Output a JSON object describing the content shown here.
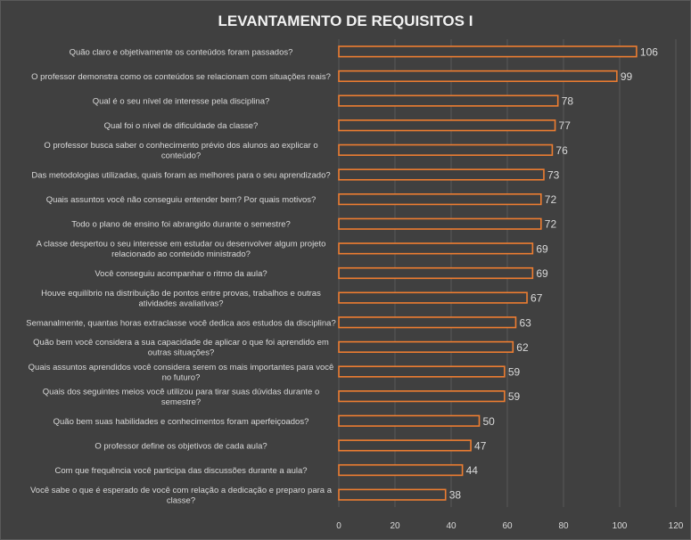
{
  "chart_data": {
    "type": "bar",
    "orientation": "horizontal",
    "title": "LEVANTAMENTO DE REQUISITOS I",
    "xlim": [
      0,
      120
    ],
    "xticks": [
      0,
      20,
      40,
      60,
      80,
      100,
      120
    ],
    "grid": true,
    "legend": "none",
    "colors": {
      "background": "#404040",
      "bar_fill": "#3f3f3f",
      "bar_stroke": "#ed7d31",
      "gridline": "#595959",
      "text": "#d9d9d9"
    },
    "categories": [
      "Quão claro e objetivamente os conteúdos foram passados?",
      "O professor demonstra como os conteúdos se relacionam com situações reais?",
      "Qual é o seu nível de interesse pela disciplina?",
      "Qual foi o nível de dificuldade da classe?",
      "O professor busca saber o conhecimento prévio dos alunos ao explicar o conteúdo?",
      "Das metodologias utilizadas, quais foram as melhores para o seu aprendizado?",
      "Quais assuntos você não conseguiu entender bem? Por quais motivos?",
      "Todo o plano de ensino foi abrangido durante o semestre?",
      "A classe despertou o seu interesse em estudar ou desenvolver algum projeto relacionado ao conteúdo ministrado?",
      "Você conseguiu acompanhar o ritmo da aula?",
      "Houve equilíbrio na distribuição de pontos entre provas, trabalhos e outras atividades avaliativas?",
      "Semanalmente, quantas horas extraclasse você dedica aos estudos da disciplina?",
      "Quão bem você considera a sua capacidade de aplicar o que foi aprendido em outras situações?",
      "Quais assuntos aprendidos você considera serem os mais importantes para você no futuro?",
      "Quais dos seguintes meios você utilizou para tirar suas dúvidas durante o semestre?",
      "Quão bem suas habilidades e conhecimentos foram aperfeiçoados?",
      "O professor define os objetivos de cada aula?",
      "Com que frequência você participa das discussões durante a aula?",
      "Você sabe o que é esperado de você com relação a dedicação e preparo para a classe?"
    ],
    "values": [
      106,
      99,
      78,
      77,
      76,
      73,
      72,
      72,
      69,
      69,
      67,
      63,
      62,
      59,
      59,
      50,
      47,
      44,
      38
    ]
  }
}
